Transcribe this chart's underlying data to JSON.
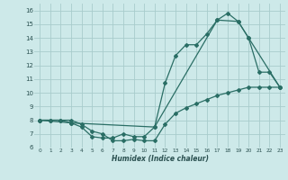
{
  "xlabel": "Humidex (Indice chaleur)",
  "xlim": [
    -0.5,
    23.5
  ],
  "ylim": [
    6,
    16.5
  ],
  "yticks": [
    6,
    7,
    8,
    9,
    10,
    11,
    12,
    13,
    14,
    15,
    16
  ],
  "xticks": [
    0,
    1,
    2,
    3,
    4,
    5,
    6,
    7,
    8,
    9,
    10,
    11,
    12,
    13,
    14,
    15,
    16,
    17,
    18,
    19,
    20,
    21,
    22,
    23
  ],
  "bg_color": "#cde9e9",
  "grid_color": "#a8cccc",
  "line_color": "#2a6e65",
  "line1_x": [
    0,
    1,
    2,
    3,
    4,
    5,
    6,
    7,
    8,
    9,
    10,
    11,
    12,
    13,
    14,
    15,
    16,
    17,
    18,
    19,
    20,
    21,
    22,
    23
  ],
  "line1_y": [
    8.0,
    8.0,
    8.0,
    7.8,
    7.5,
    6.8,
    6.7,
    6.7,
    7.0,
    6.8,
    6.8,
    7.5,
    10.7,
    12.7,
    13.5,
    13.5,
    14.3,
    15.3,
    15.8,
    15.2,
    14.0,
    11.5,
    11.5,
    10.4
  ],
  "line2_x": [
    0,
    1,
    2,
    3,
    4,
    5,
    6,
    7,
    8,
    9,
    10,
    11,
    12,
    13,
    14,
    15,
    16,
    17,
    18,
    19,
    20,
    21,
    22,
    23
  ],
  "line2_y": [
    8.0,
    8.0,
    8.0,
    8.0,
    7.7,
    7.2,
    7.0,
    6.5,
    6.5,
    6.6,
    6.5,
    6.5,
    7.7,
    8.5,
    8.9,
    9.2,
    9.5,
    9.8,
    10.0,
    10.2,
    10.4,
    10.4,
    10.4,
    10.4
  ],
  "line3_x": [
    0,
    3,
    11,
    17,
    19,
    20,
    23
  ],
  "line3_y": [
    8.0,
    7.8,
    7.5,
    15.3,
    15.2,
    14.0,
    10.4
  ]
}
